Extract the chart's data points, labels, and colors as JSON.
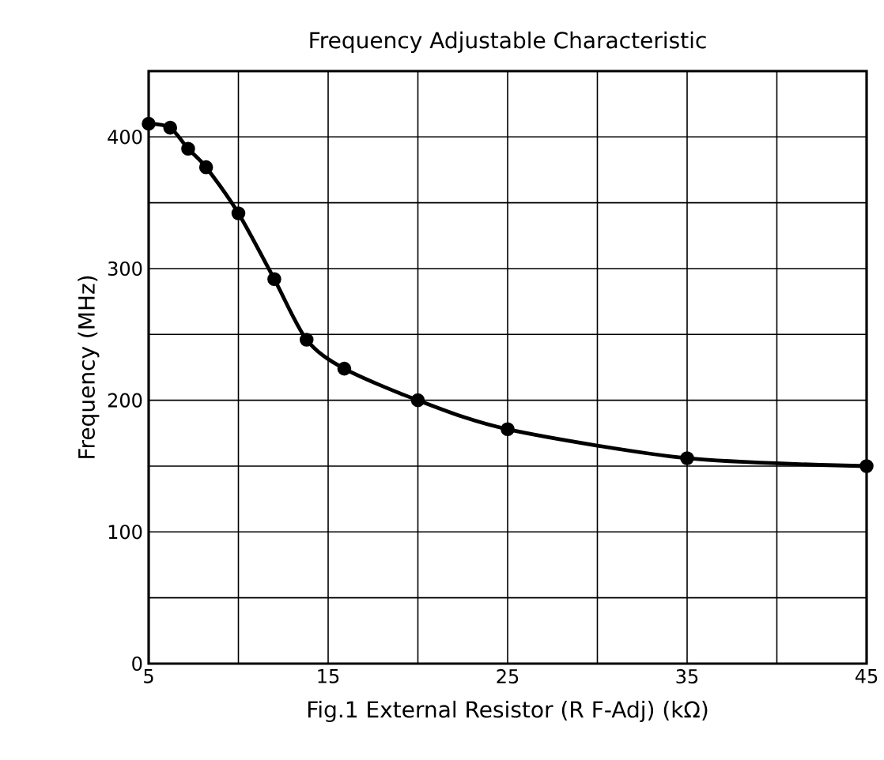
{
  "chart_data": {
    "type": "line",
    "title": "Frequency Adjustable Characteristic",
    "xlabel": "Fig.1    External Resistor (R F-Adj)    (kΩ)",
    "ylabel": "Frequency    (MHz)",
    "x": [
      5,
      6.2,
      7.2,
      8.2,
      10,
      12,
      13.8,
      15.9,
      20,
      25,
      35,
      45
    ],
    "series": [
      {
        "color": "#000000",
        "values": [
          410,
          407,
          391,
          377,
          342,
          292,
          246,
          224,
          200,
          178,
          156,
          150
        ]
      }
    ],
    "xlim": [
      5,
      45
    ],
    "ylim": [
      0,
      450
    ],
    "xticks": [
      5,
      {
        "value": 10,
        "label": null
      },
      15,
      {
        "value": 20,
        "label": null
      },
      25,
      {
        "value": 30,
        "label": null
      },
      35,
      {
        "value": 40,
        "label": null
      },
      45
    ],
    "yticks": [
      0,
      {
        "value": 50,
        "label": null
      },
      100,
      {
        "value": 150,
        "label": null
      },
      200,
      {
        "value": 250,
        "label": null
      },
      300,
      {
        "value": 350,
        "label": null
      },
      400
    ],
    "grid": true,
    "marker": "circle",
    "line_style": "solid"
  }
}
